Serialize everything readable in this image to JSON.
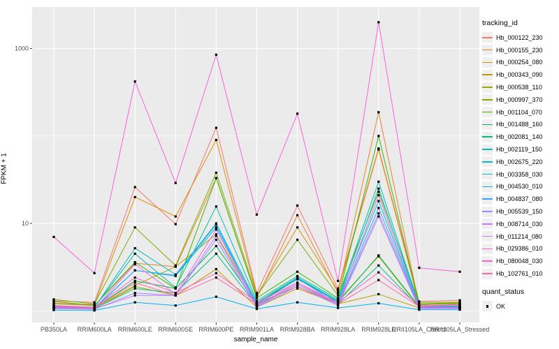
{
  "figure": {
    "background": "#FFFFFF",
    "panel_background": "#EBEBEB",
    "gridline_color": "#FFFFFF",
    "tick_color": "#333333",
    "tick_label_color": "#4D4D4D"
  },
  "chart_data": {
    "type": "line",
    "title": "",
    "xlabel": "sample_name",
    "ylabel": "FPKM + 1",
    "y_scale": "log10",
    "ylim": [
      0.9,
      2600
    ],
    "grid": true,
    "legend_position": "right",
    "y_ticks": [
      {
        "value": 10,
        "label": "10"
      },
      {
        "value": 1000,
        "label": "1000"
      }
    ],
    "y_minor_gridlines": [
      1,
      100
    ],
    "point_marker": {
      "shape": "square",
      "color": "#000000",
      "size": 3.2
    },
    "categories": [
      "PB350LA",
      "RRIM600LA",
      "RRIM600LE",
      "RRIM600SE",
      "RRIM600PE",
      "RRIM901LA",
      "RRIM928BA",
      "RRIM928LA",
      "RRIM928LE",
      "RRII105LA_Control",
      "RRII105LA_Stressed"
    ],
    "series": [
      {
        "name": "Hb_000122_230",
        "color": "#F8766D",
        "values": [
          1.3,
          1.25,
          26,
          9.8,
          124,
          1.6,
          16,
          1.8,
          72,
          1.28,
          1.32
        ]
      },
      {
        "name": "Hb_000155_230",
        "color": "#EA8331",
        "values": [
          1.2,
          1.15,
          3.5,
          3.2,
          33,
          1.4,
          12.4,
          1.6,
          187,
          1.17,
          1.22
        ]
      },
      {
        "name": "Hb_000254_080",
        "color": "#D89000",
        "values": [
          1.22,
          1.18,
          20,
          12,
          90,
          1.5,
          9,
          1.7,
          70,
          1.2,
          1.24
        ]
      },
      {
        "name": "Hb_000343_090",
        "color": "#C09B00",
        "values": [
          1.08,
          1.05,
          1.9,
          1.5,
          3.0,
          1.1,
          1.8,
          1.2,
          1.55,
          1.08,
          1.08
        ]
      },
      {
        "name": "Hb_000538_110",
        "color": "#A3A500",
        "values": [
          1.1,
          1.08,
          1.95,
          3.2,
          7.5,
          1.2,
          2.3,
          1.3,
          4.2,
          1.1,
          1.1
        ]
      },
      {
        "name": "Hb_000997_370",
        "color": "#7CAE00",
        "values": [
          1.35,
          1.2,
          9.0,
          3.3,
          38,
          1.5,
          6.5,
          1.5,
          23,
          1.25,
          1.25
        ]
      },
      {
        "name": "Hb_001104_070",
        "color": "#39B600",
        "values": [
          1.28,
          1.15,
          3.6,
          1.8,
          33,
          1.4,
          2.8,
          1.4,
          100,
          1.2,
          1.2
        ]
      },
      {
        "name": "Hb_001488_160",
        "color": "#00BB4E",
        "values": [
          1.12,
          1.08,
          2.2,
          1.8,
          5.5,
          1.2,
          2.4,
          1.25,
          4.3,
          1.12,
          1.12
        ]
      },
      {
        "name": "Hb_002081_140",
        "color": "#00BF7D",
        "values": [
          1.1,
          1.06,
          1.8,
          1.6,
          4.5,
          1.15,
          2.0,
          1.2,
          3.3,
          1.1,
          1.1
        ]
      },
      {
        "name": "Hb_002119_150",
        "color": "#00C1A3",
        "values": [
          1.15,
          1.1,
          4.5,
          1.85,
          15.6,
          1.3,
          2.5,
          1.35,
          30,
          1.15,
          1.15
        ]
      },
      {
        "name": "Hb_002675_220",
        "color": "#00BFC4",
        "values": [
          1.12,
          1.09,
          5.2,
          2.6,
          10,
          1.25,
          2.4,
          1.3,
          25,
          1.12,
          1.12
        ]
      },
      {
        "name": "Hb_003358_030",
        "color": "#00BAE0",
        "values": [
          1.1,
          1.07,
          2.9,
          2.5,
          9.0,
          1.2,
          2.3,
          1.28,
          18,
          1.1,
          1.1
        ]
      },
      {
        "name": "Hb_004530_010",
        "color": "#00B0F6",
        "values": [
          1.02,
          1.01,
          1.25,
          1.15,
          1.45,
          1.05,
          1.25,
          1.08,
          1.22,
          1.03,
          1.03
        ]
      },
      {
        "name": "Hb_004837_080",
        "color": "#35A2FF",
        "values": [
          1.08,
          1.05,
          2.9,
          2.55,
          9.7,
          1.15,
          2.35,
          1.2,
          15,
          1.08,
          1.08
        ]
      },
      {
        "name": "Hb_005539_150",
        "color": "#9590FF",
        "values": [
          1.06,
          1.04,
          1.6,
          1.5,
          6.5,
          1.1,
          1.9,
          1.15,
          12,
          1.06,
          1.06
        ]
      },
      {
        "name": "Hb_008714_030",
        "color": "#C77CFF",
        "values": [
          1.07,
          1.05,
          1.5,
          1.5,
          7.2,
          1.12,
          2.0,
          1.18,
          13,
          1.07,
          1.07
        ]
      },
      {
        "name": "Hb_011214_080",
        "color": "#E76BF3",
        "values": [
          1.09,
          1.06,
          3.4,
          1.55,
          8.5,
          1.15,
          2.1,
          1.2,
          21,
          1.09,
          1.09
        ]
      },
      {
        "name": "Hb_029386_010",
        "color": "#FA62DB",
        "values": [
          7.0,
          2.7,
          420,
          29,
          850,
          12.6,
          180,
          2.2,
          2000,
          3.1,
          2.8
        ]
      },
      {
        "name": "Hb_080048_030",
        "color": "#FF61CC",
        "values": [
          1.14,
          1.1,
          2.4,
          1.6,
          2.7,
          1.25,
          2.1,
          1.25,
          2.75,
          1.14,
          1.18
        ]
      },
      {
        "name": "Hb_102761_010",
        "color": "#FF67A4",
        "values": [
          1.12,
          1.08,
          2.1,
          1.5,
          2.4,
          1.2,
          1.9,
          1.2,
          2.25,
          1.12,
          1.15
        ]
      }
    ]
  },
  "legends": {
    "tracking": {
      "title": "tracking_id"
    },
    "quant": {
      "title": "quant_status",
      "items": [
        {
          "label": "OK"
        }
      ]
    }
  }
}
